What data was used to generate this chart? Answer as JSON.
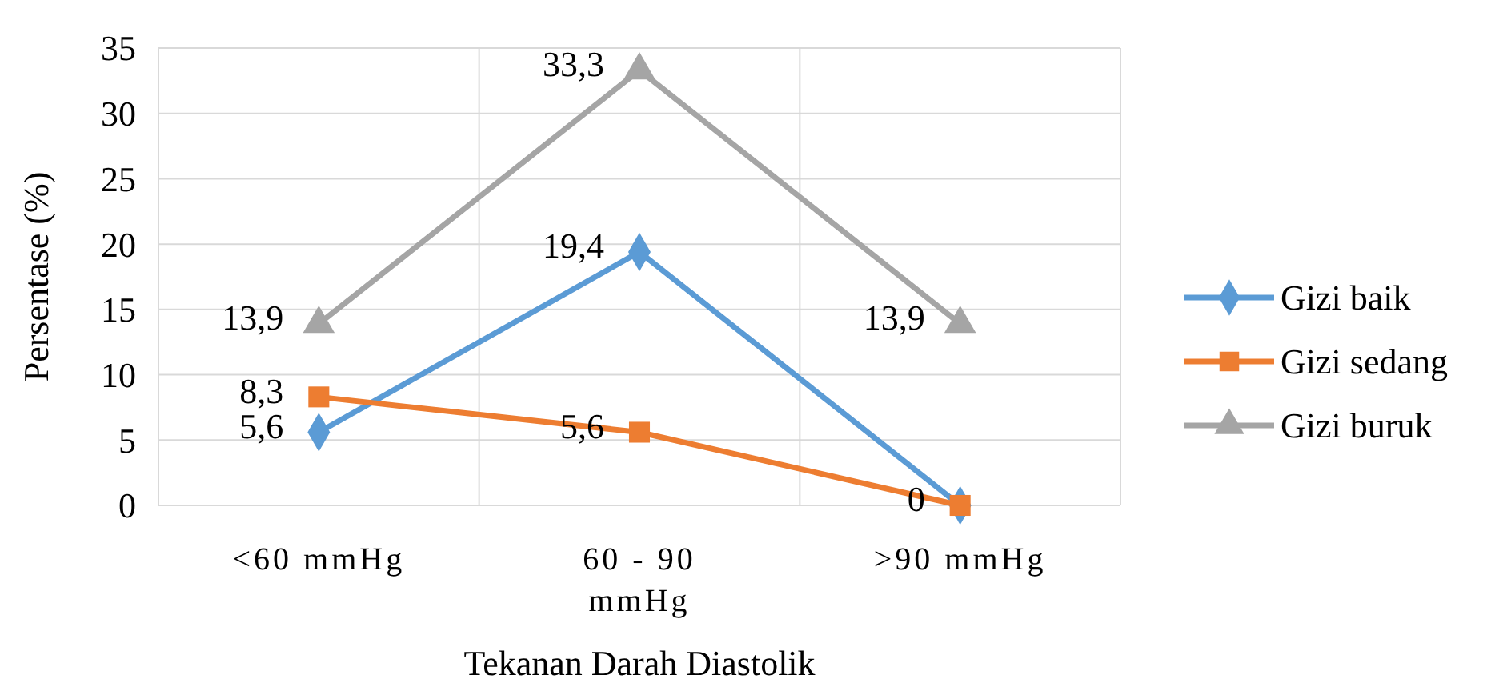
{
  "chart_data": {
    "type": "line",
    "xlabel": "Tekanan Darah Diastolik",
    "ylabel": "Persentase (%)",
    "categories": [
      "<60 mmHg",
      "60 - 90 mmHg",
      ">90 mmHg"
    ],
    "ylim": [
      0,
      35
    ],
    "yticks": [
      0,
      5,
      10,
      15,
      20,
      25,
      30,
      35
    ],
    "grid": true,
    "legend": "right",
    "series": [
      {
        "name": "Gizi baik",
        "color": "#5b9bd5",
        "marker": "diamond",
        "values": [
          5.6,
          19.4,
          0
        ],
        "value_labels": [
          "5,6",
          "19,4",
          null
        ]
      },
      {
        "name": "Gizi sedang",
        "color": "#ed7d31",
        "marker": "square",
        "values": [
          8.3,
          5.6,
          0
        ],
        "value_labels": [
          "8,3",
          "5,6",
          "0"
        ]
      },
      {
        "name": "Gizi buruk",
        "color": "#a5a5a5",
        "marker": "triangle",
        "values": [
          13.9,
          33.3,
          13.9
        ],
        "value_labels": [
          "13,9",
          "33,3",
          "13,9"
        ]
      }
    ]
  }
}
